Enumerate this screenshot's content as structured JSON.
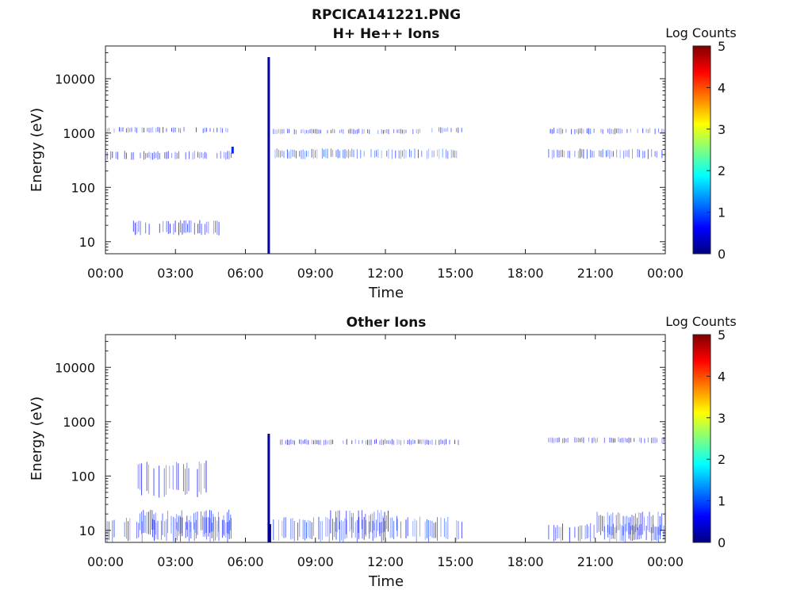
{
  "chart_data": [
    {
      "type": "heatmap",
      "figure_title": "RPCICA141221.PNG",
      "title": "H+ He++ Ions",
      "xlabel": "Time",
      "ylabel": "Energy (eV)",
      "x_ticks": [
        "00:00",
        "03:00",
        "06:00",
        "09:00",
        "12:00",
        "15:00",
        "18:00",
        "21:00",
        "00:00"
      ],
      "y_ticks": [
        "10",
        "100",
        "1000",
        "10000"
      ],
      "y_scale": "log",
      "ylim": [
        6,
        40000
      ],
      "colorbar": {
        "label": "Log Counts",
        "ticks": [
          "0",
          "1",
          "2",
          "3",
          "4",
          "5"
        ],
        "range": [
          0,
          5
        ],
        "colormap": "jet"
      },
      "bands": [
        {
          "t_start": 0.0,
          "t_end": 5.4,
          "e_min": 1000,
          "e_max": 1300,
          "log_counts": 0.5
        },
        {
          "t_start": 0.0,
          "t_end": 5.4,
          "e_min": 320,
          "e_max": 470,
          "log_counts": 0.5
        },
        {
          "t_start": 1.2,
          "t_end": 4.9,
          "e_min": 13,
          "e_max": 25,
          "log_counts": 0.4
        },
        {
          "t_start": 7.2,
          "t_end": 13.6,
          "e_min": 950,
          "e_max": 1200,
          "log_counts": 0.5
        },
        {
          "t_start": 7.2,
          "t_end": 15.3,
          "e_min": 330,
          "e_max": 520,
          "log_counts": 0.7
        },
        {
          "t_start": 14.0,
          "t_end": 15.3,
          "e_min": 1000,
          "e_max": 1300,
          "log_counts": 0.5
        },
        {
          "t_start": 19.0,
          "t_end": 24.0,
          "e_min": 950,
          "e_max": 1250,
          "log_counts": 0.5
        },
        {
          "t_start": 19.0,
          "t_end": 24.0,
          "e_min": 330,
          "e_max": 520,
          "log_counts": 0.6
        }
      ],
      "spikes": [
        {
          "t": 7.0,
          "e_min": 6,
          "e_max": 25000,
          "log_counts": 0.2
        },
        {
          "t": 5.45,
          "e_min": 420,
          "e_max": 560,
          "log_counts": 0.8
        }
      ]
    },
    {
      "type": "heatmap",
      "title": "Other Ions",
      "xlabel": "Time",
      "ylabel": "Energy (eV)",
      "x_ticks": [
        "00:00",
        "03:00",
        "06:00",
        "09:00",
        "12:00",
        "15:00",
        "18:00",
        "21:00",
        "00:00"
      ],
      "y_ticks": [
        "10",
        "100",
        "1000",
        "10000"
      ],
      "y_scale": "log",
      "ylim": [
        6,
        40000
      ],
      "colorbar": {
        "label": "Log Counts",
        "ticks": [
          "0",
          "1",
          "2",
          "3",
          "4",
          "5"
        ],
        "range": [
          0,
          5
        ],
        "colormap": "jet"
      },
      "bands": [
        {
          "t_start": 0.0,
          "t_end": 5.4,
          "e_min": 6,
          "e_max": 18,
          "log_counts": 0.5
        },
        {
          "t_start": 1.4,
          "t_end": 5.4,
          "e_min": 8,
          "e_max": 24,
          "log_counts": 0.6
        },
        {
          "t_start": 1.4,
          "t_end": 4.4,
          "e_min": 40,
          "e_max": 200,
          "log_counts": 0.3
        },
        {
          "t_start": 7.2,
          "t_end": 15.3,
          "e_min": 6,
          "e_max": 18,
          "log_counts": 0.6
        },
        {
          "t_start": 9.5,
          "t_end": 12.5,
          "e_min": 8,
          "e_max": 24,
          "log_counts": 0.5
        },
        {
          "t_start": 7.5,
          "t_end": 15.3,
          "e_min": 370,
          "e_max": 480,
          "log_counts": 0.3
        },
        {
          "t_start": 19.0,
          "t_end": 24.0,
          "e_min": 6,
          "e_max": 14,
          "log_counts": 0.5
        },
        {
          "t_start": 21.0,
          "t_end": 24.0,
          "e_min": 8,
          "e_max": 22,
          "log_counts": 0.5
        },
        {
          "t_start": 19.0,
          "t_end": 24.0,
          "e_min": 400,
          "e_max": 520,
          "log_counts": 0.3
        }
      ],
      "spikes": [
        {
          "t": 7.0,
          "e_min": 6,
          "e_max": 600,
          "log_counts": 0.2
        },
        {
          "t": 7.05,
          "e_min": 6,
          "e_max": 13,
          "log_counts": 0.1
        }
      ]
    }
  ]
}
